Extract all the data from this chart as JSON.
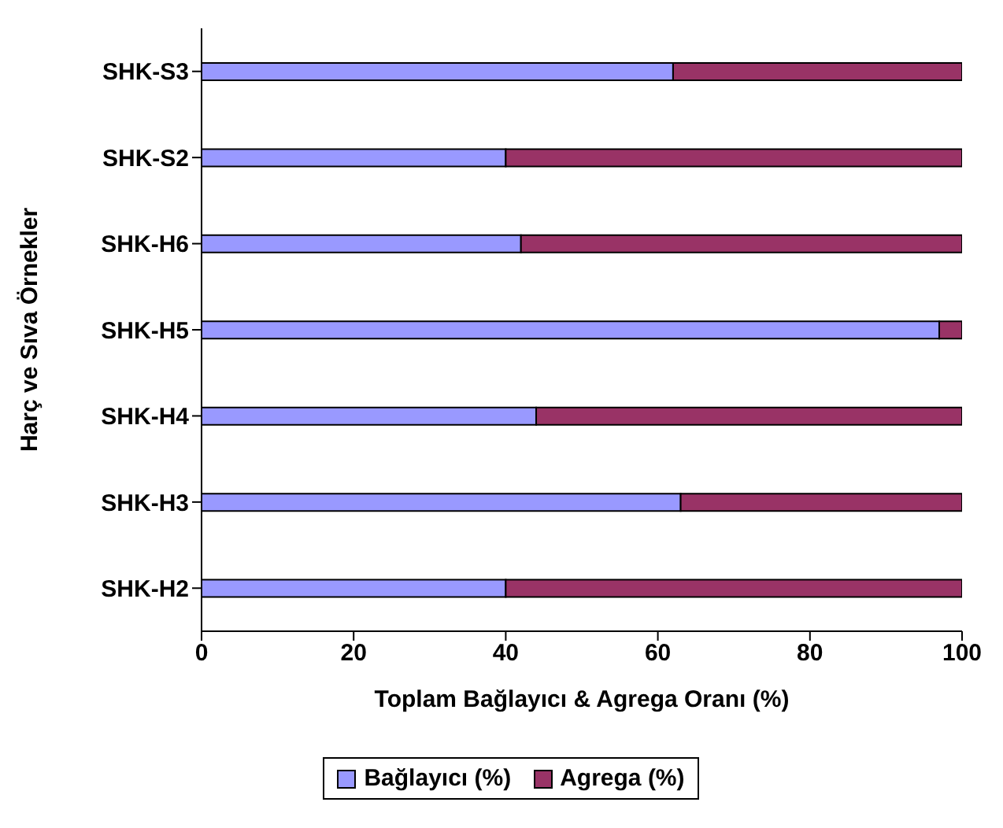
{
  "chart_data": {
    "type": "bar",
    "orientation": "horizontal",
    "stacked": true,
    "xlabel": "Toplam Bağlayıcı & Agrega Oranı (%)",
    "ylabel": "Harç ve Sıva Örnekler",
    "categories": [
      "SHK-S3",
      "SHK-S2",
      "SHK-H6",
      "SHK-H5",
      "SHK-H4",
      "SHK-H3",
      "SHK-H2"
    ],
    "series": [
      {
        "name": "Bağlayıcı (%)",
        "color": "#9999ff",
        "values": [
          62,
          40,
          42,
          97,
          44,
          63,
          40
        ]
      },
      {
        "name": "Agrega (%)",
        "color": "#993366",
        "values": [
          38,
          60,
          58,
          3,
          56,
          37,
          60
        ]
      }
    ],
    "xlim": [
      0,
      100
    ],
    "xticks": [
      0,
      20,
      40,
      60,
      80,
      100
    ],
    "grid": false,
    "legend": "bottom"
  }
}
